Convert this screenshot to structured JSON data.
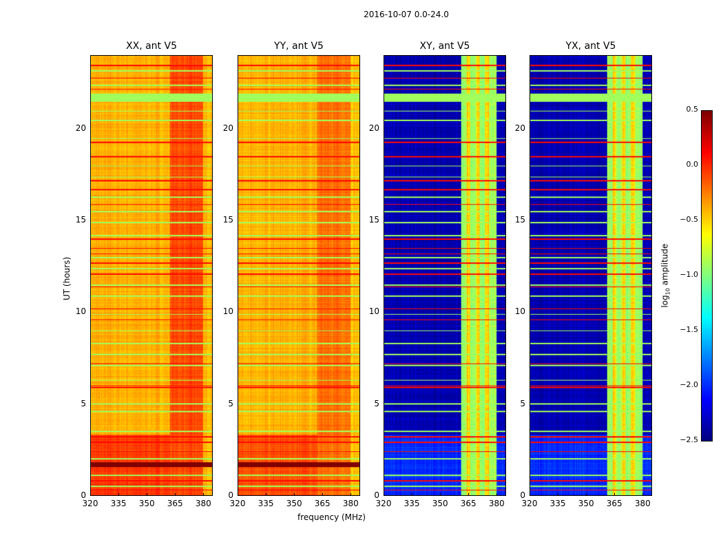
{
  "chart_data": {
    "type": "heatmap",
    "title": "2016-10-07 0.0-24.0",
    "xlabel": "frequency (MHz)",
    "ylabel": "UT (hours)",
    "xlim": [
      320,
      385
    ],
    "ylim": [
      0,
      24
    ],
    "xticks": [
      "320",
      "335",
      "350",
      "365",
      "380"
    ],
    "xtick_values": [
      320,
      335,
      350,
      365,
      380
    ],
    "yticks": [
      "0",
      "5",
      "10",
      "15",
      "20"
    ],
    "ytick_values": [
      0,
      5,
      10,
      15,
      20
    ],
    "panels": [
      {
        "title": "XX, ant V5",
        "base_level": -0.4,
        "band_level": -0.1,
        "band_mhz": [
          362,
          381
        ],
        "low_time_level": -0.05
      },
      {
        "title": "YY, ant V5",
        "base_level": -0.4,
        "band_level": -0.2,
        "band_mhz": [
          362,
          381
        ],
        "low_time_level": -0.1
      },
      {
        "title": "XY, ant V5",
        "base_level": -2.35,
        "band_level": -0.9,
        "band_mhz": [
          361,
          380
        ],
        "low_time_level": -2.0
      },
      {
        "title": "YX, ant V5",
        "base_level": -2.35,
        "band_level": -0.9,
        "band_mhz": [
          361,
          380
        ],
        "low_time_level": -2.0
      }
    ],
    "flagged_band_hours": [
      21.5,
      21.95
    ],
    "green_flag_hours": [
      0.5,
      1.1,
      2.0,
      3.5,
      4.6,
      5.0,
      6.3,
      7.1,
      7.7,
      8.3,
      9.0,
      9.9,
      10.9,
      11.5,
      12.4,
      13.0,
      14.2,
      14.9,
      15.5,
      16.3,
      17.4,
      18.0,
      19.5,
      20.5,
      21.0,
      22.4,
      23.2
    ],
    "red_flag_hours": [
      0.3,
      0.8,
      2.4,
      2.9,
      3.2,
      5.9,
      6.0,
      7.2,
      9.6,
      10.2,
      11.4,
      12.1,
      12.7,
      13.2,
      13.5,
      14.0,
      15.9,
      16.7,
      17.2,
      18.5,
      19.3,
      22.2,
      22.8,
      23.5
    ],
    "dark_flag_hours": [
      1.55,
      1.8
    ],
    "colorbar": {
      "label": "log10 amplitude",
      "label_main": "log",
      "label_sub": "10",
      "label_rest": " amplitude",
      "colormap": "jet",
      "range": [
        -2.5,
        0.5
      ],
      "ticks": [
        "0.5",
        "0.0",
        "−0.5",
        "−1.0",
        "−1.5",
        "−2.0",
        "−2.5"
      ],
      "tick_values": [
        0.5,
        0.0,
        -0.5,
        -1.0,
        -1.5,
        -2.0,
        -2.5
      ]
    }
  }
}
